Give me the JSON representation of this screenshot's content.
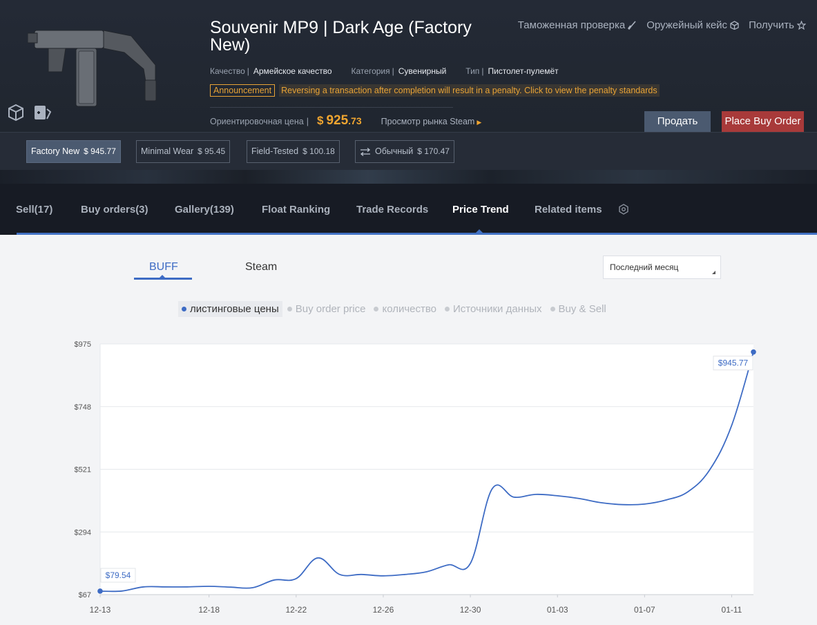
{
  "item": {
    "title": "Souvenir MP9 | Dark Age (Factory New)",
    "attributes": [
      {
        "label": "Качество",
        "value": "Армейское качество"
      },
      {
        "label": "Категория",
        "value": "Сувенирный"
      },
      {
        "label": "Тип",
        "value": "Пистолет-пулемёт"
      }
    ],
    "announcement_badge": "Announcement",
    "announcement_text": "Reversing a transaction after completion will result in a penalty. Click to view the penalty standards",
    "price_label": "Ориентировочная цена",
    "price_symbol": "$",
    "price_int": "925",
    "price_dec": ".73",
    "steam_market_link": "Просмотр рынка Steam",
    "sell_label": "Продать",
    "buy_order_label": "Place Buy Order"
  },
  "top_links": [
    {
      "label": "Таможенная проверка",
      "icon": "brush-icon"
    },
    {
      "label": "Оружейный кейс",
      "icon": "box-icon"
    },
    {
      "label": "Получить",
      "icon": "star-icon"
    }
  ],
  "wears": [
    {
      "label": "Factory New",
      "price": "$ 945.77",
      "active": true
    },
    {
      "label": "Minimal Wear",
      "price": "$ 95.45",
      "active": false
    },
    {
      "label": "Field-Tested",
      "price": "$ 100.18",
      "active": false
    },
    {
      "label": "Обычный",
      "price": "$ 170.47",
      "active": false,
      "icon": "swap-icon"
    }
  ],
  "tabs": [
    {
      "label": "Sell(17)"
    },
    {
      "label": "Buy orders(3)"
    },
    {
      "label": "Gallery(139)"
    },
    {
      "label": "Float Ranking"
    },
    {
      "label": "Trade Records"
    },
    {
      "label": "Price Trend",
      "active": true
    },
    {
      "label": "Related items"
    }
  ],
  "source_tabs": {
    "buff": "BUFF",
    "steam": "Steam"
  },
  "period": "Последний месяц",
  "legend": [
    {
      "label": "листинговые цены",
      "active": true
    },
    {
      "label": "Buy order price",
      "active": false
    },
    {
      "label": "количество",
      "active": false
    },
    {
      "label": "Источники данных",
      "active": false
    },
    {
      "label": "Buy & Sell",
      "active": false
    }
  ],
  "colors": {
    "accent": "#3d6bc4",
    "price": "#f0a530",
    "buy_order": "#a83a3a",
    "sell": "#4b5a70"
  },
  "chart_data": {
    "type": "line",
    "series": [
      {
        "name": "листинговые цены",
        "x": [
          "12-13",
          "12-14",
          "12-15",
          "12-16",
          "12-17",
          "12-18",
          "12-19",
          "12-20",
          "12-21",
          "12-22",
          "12-23",
          "12-24",
          "12-25",
          "12-26",
          "12-27",
          "12-28",
          "12-29",
          "12-30",
          "12-31",
          "01-01",
          "01-02",
          "01-03",
          "01-04",
          "01-05",
          "01-06",
          "01-07",
          "01-08",
          "01-09",
          "01-10",
          "01-11",
          "01-12"
        ],
        "values": [
          79.54,
          80,
          95,
          95,
          95,
          97,
          94,
          92,
          120,
          125,
          200,
          140,
          140,
          135,
          140,
          150,
          175,
          180,
          450,
          420,
          430,
          425,
          415,
          400,
          393,
          395,
          410,
          440,
          520,
          680,
          945.77
        ]
      }
    ],
    "x_ticks": [
      "12-13",
      "12-18",
      "12-22",
      "12-26",
      "12-30",
      "01-03",
      "01-07",
      "01-11"
    ],
    "y_ticks": [
      "$67",
      "$294",
      "$521",
      "$748",
      "$975"
    ],
    "ylim": [
      67,
      975
    ],
    "annotations": [
      {
        "label": "$79.54",
        "at": "start"
      },
      {
        "label": "$945.77",
        "at": "end"
      }
    ],
    "grid": true
  }
}
